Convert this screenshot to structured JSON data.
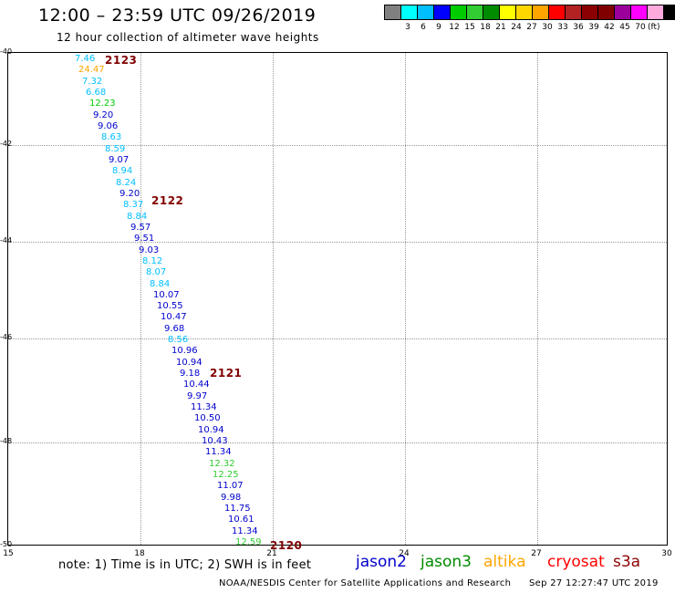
{
  "header": {
    "title": "12:00 – 23:59 UTC 09/26/2019",
    "subtitle": "12 hour collection of altimeter wave heights"
  },
  "legend": {
    "colors": [
      "#808080",
      "#00ffff",
      "#00bfff",
      "#0000ff",
      "#00cd00",
      "#32cd32",
      "#008b00",
      "#ffff00",
      "#ffd700",
      "#ffa500",
      "#ff0000",
      "#b22222",
      "#8b0000",
      "#800000",
      "#9b009b",
      "#ff00ff",
      "#ffaadd",
      "#000000"
    ],
    "labels": [
      "3",
      "6",
      "9",
      "12",
      "15",
      "18",
      "21",
      "24",
      "27",
      "30",
      "33",
      "36",
      "39",
      "42",
      "45",
      "70"
    ],
    "unit": "(ft)"
  },
  "axes": {
    "y_ticks": [
      "-40",
      "-42",
      "-44",
      "-46",
      "-48",
      "-50"
    ],
    "x_ticks": [
      "15",
      "18",
      "21",
      "24",
      "27",
      "30"
    ]
  },
  "time_labels": [
    "2123",
    "2122",
    "2121",
    "2120"
  ],
  "wave_heights": [
    {
      "value": "7.46",
      "color": "#00bfff"
    },
    {
      "value": "24.47",
      "color": "#ffa500"
    },
    {
      "value": "7.32",
      "color": "#00bfff"
    },
    {
      "value": "6.68",
      "color": "#00bfff"
    },
    {
      "value": "12.23",
      "color": "#00cd00"
    },
    {
      "value": "9.20",
      "color": "#0000cd"
    },
    {
      "value": "9.06",
      "color": "#0000cd"
    },
    {
      "value": "8.63",
      "color": "#00bfff"
    },
    {
      "value": "8.59",
      "color": "#00bfff"
    },
    {
      "value": "9.07",
      "color": "#0000cd"
    },
    {
      "value": "8.94",
      "color": "#00bfff"
    },
    {
      "value": "8.24",
      "color": "#00bfff"
    },
    {
      "value": "9.20",
      "color": "#0000cd"
    },
    {
      "value": "8.37",
      "color": "#00bfff"
    },
    {
      "value": "8.84",
      "color": "#00bfff"
    },
    {
      "value": "9.57",
      "color": "#0000cd"
    },
    {
      "value": "9.51",
      "color": "#0000cd"
    },
    {
      "value": "9.03",
      "color": "#0000cd"
    },
    {
      "value": "8.12",
      "color": "#00bfff"
    },
    {
      "value": "8.07",
      "color": "#00bfff"
    },
    {
      "value": "8.84",
      "color": "#00bfff"
    },
    {
      "value": "10.07",
      "color": "#0000cd"
    },
    {
      "value": "10.55",
      "color": "#0000cd"
    },
    {
      "value": "10.47",
      "color": "#0000cd"
    },
    {
      "value": "9.68",
      "color": "#0000cd"
    },
    {
      "value": "8.56",
      "color": "#00bfff"
    },
    {
      "value": "10.96",
      "color": "#0000cd"
    },
    {
      "value": "10.94",
      "color": "#0000cd"
    },
    {
      "value": "9.18",
      "color": "#0000cd"
    },
    {
      "value": "10.44",
      "color": "#0000cd"
    },
    {
      "value": "9.97",
      "color": "#0000cd"
    },
    {
      "value": "11.34",
      "color": "#0000cd"
    },
    {
      "value": "10.50",
      "color": "#0000cd"
    },
    {
      "value": "10.94",
      "color": "#0000cd"
    },
    {
      "value": "10.43",
      "color": "#0000cd"
    },
    {
      "value": "11.34",
      "color": "#0000cd"
    },
    {
      "value": "12.32",
      "color": "#32cd32"
    },
    {
      "value": "12.25",
      "color": "#32cd32"
    },
    {
      "value": "11.07",
      "color": "#0000cd"
    },
    {
      "value": "9.98",
      "color": "#0000cd"
    },
    {
      "value": "11.75",
      "color": "#0000cd"
    },
    {
      "value": "10.61",
      "color": "#0000cd"
    },
    {
      "value": "11.34",
      "color": "#0000cd"
    },
    {
      "value": "12.59",
      "color": "#32cd32"
    }
  ],
  "footer": {
    "note": "note: 1) Time is in UTC; 2) SWH is in feet",
    "satellites": [
      {
        "name": "jason2",
        "color": "#0000cd"
      },
      {
        "name": "jason3",
        "color": "#008b00"
      },
      {
        "name": "altika",
        "color": "#ffa500"
      },
      {
        "name": "cryosat",
        "color": "#ff0000"
      },
      {
        "name": "s3a",
        "color": "#8b0000"
      }
    ],
    "credit": "NOAA/NESDIS Center for Satellite Applications and Research",
    "timestamp": "Sep 27 12:27:47 UTC 2019"
  }
}
